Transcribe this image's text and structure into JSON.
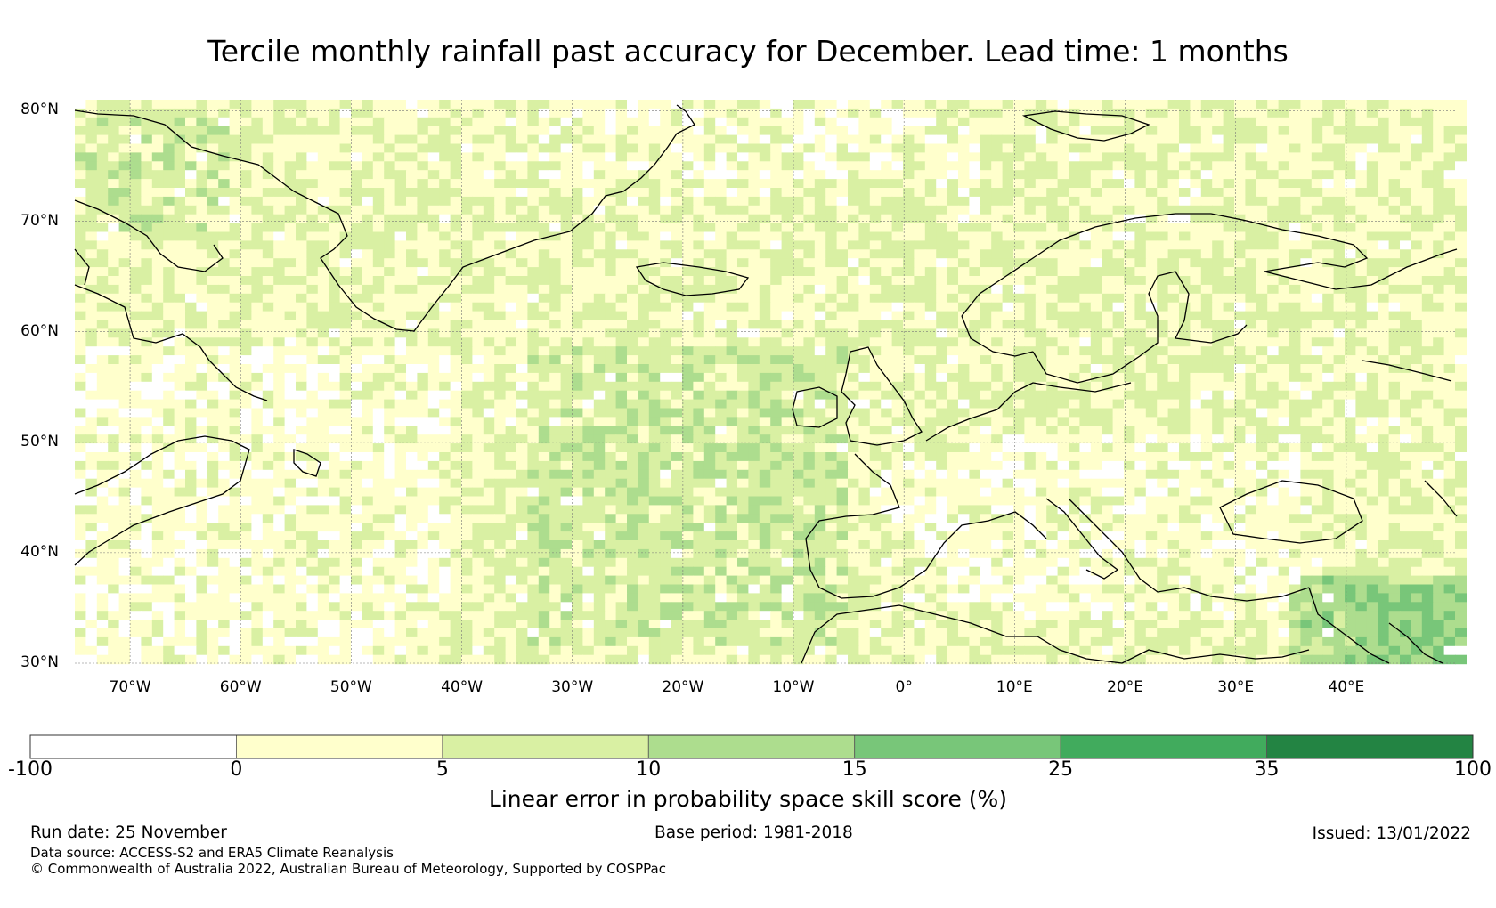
{
  "title": "Tercile monthly rainfall past accuracy for December. Lead time: 1 months",
  "map": {
    "lat_labels": [
      "80°N",
      "70°N",
      "60°N",
      "50°N",
      "40°N",
      "30°N"
    ],
    "lon_labels": [
      "70°W",
      "60°W",
      "50°W",
      "40°W",
      "30°W",
      "20°W",
      "10°W",
      "0°",
      "10°E",
      "20°E",
      "30°E",
      "40°E"
    ],
    "lat_range": [
      30,
      81
    ],
    "lon_range": [
      -75,
      50
    ]
  },
  "colorbar": {
    "ticks": [
      "-100",
      "0",
      "5",
      "10",
      "15",
      "25",
      "35",
      "100"
    ],
    "colors": [
      "#ffffff",
      "#ffffcc",
      "#d9f0a3",
      "#addd8e",
      "#78c679",
      "#41ab5d",
      "#238443"
    ],
    "label": "Linear error in probability space skill score (%)"
  },
  "footer": {
    "run_date": "Run date: 25 November",
    "base_period": "Base period: 1981-2018",
    "issued": "Issued: 13/01/2022",
    "data_source": "Data source: ACCESS-S2 and ERA5 Climate Reanalysis",
    "copyright": "© Commonwealth of Australia 2022, Australian Bureau of Meteorology, Supported by COSPPac"
  }
}
